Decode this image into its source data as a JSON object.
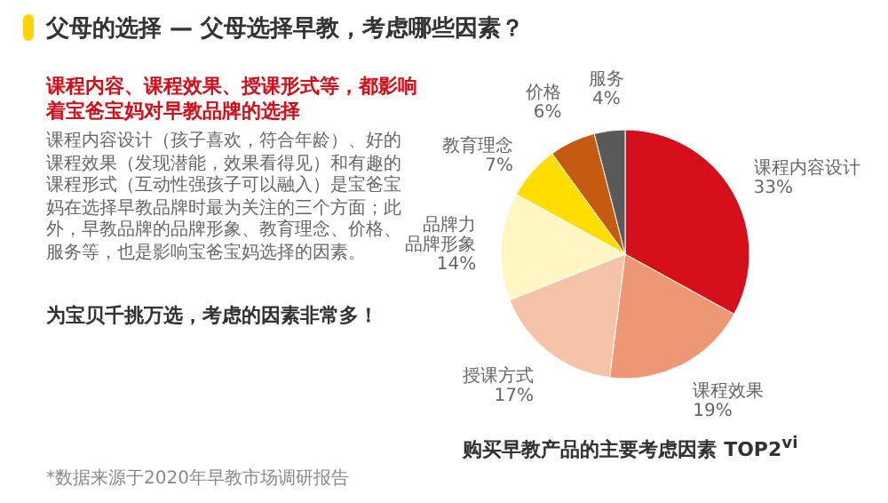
{
  "chart_data": {
    "type": "pie",
    "title": "父母的选择 — 父母选择早教，考虑哪些因素？",
    "subtitle": "购买早教产品的主要考虑因素 TOP2$^{vi}$",
    "categories": [
      "课程内容设计",
      "课程效果",
      "授课方式",
      "品牌力品牌形象",
      "教育理念",
      "价格",
      "服务"
    ],
    "values": [
      33,
      19,
      17,
      14,
      7,
      6,
      4
    ],
    "colors": [
      "#d40f1a",
      "#ee9873",
      "#f5c3a7",
      "#fff6c4",
      "#ffdd00",
      "#c55a11",
      "#595959"
    ],
    "value_labels": [
      "33%",
      "19%",
      "17%",
      "14%",
      "7%",
      "6%",
      "4%"
    ],
    "annotations": [
      "课程内容、课程效果、授课形式等，都影响着宝爸宝妈对早教品牌的选择",
      "课程内容设计（孩子喜欢，符合年龄）、好的课程效果（发现潜能，效果看得见）和有趣的课程形式（互动性强孩子可以融入）是宝爸宝妈在选择早教品牌时最为关注的三个方面；此外，早教品牌的品牌形象、教育理念、价格、服务等，也是影响宝爸宝妈选择的因素。",
      "为宝贝千挑万选，考虑的因素非常多！",
      "*数据来源于2020年早教市场调研报告"
    ]
  }
}
